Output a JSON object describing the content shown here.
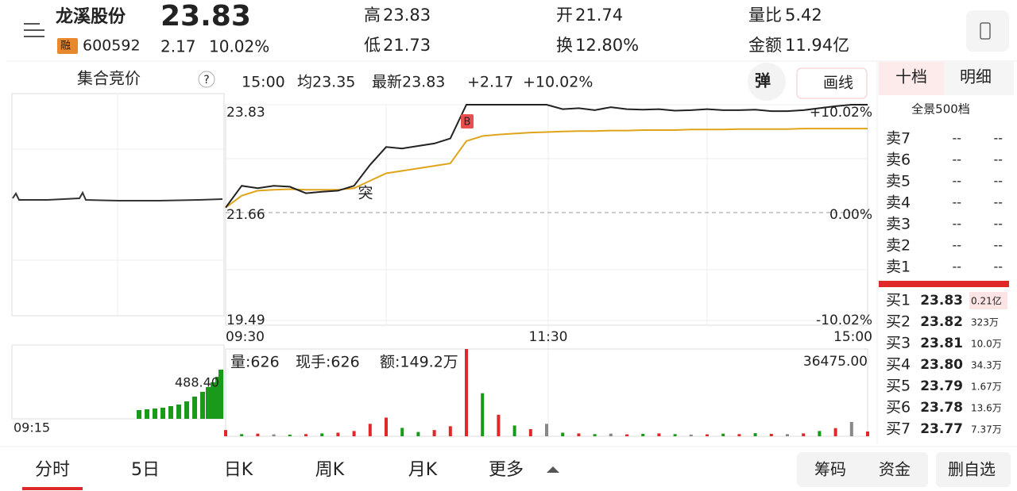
{
  "header": {
    "name": "龙溪股份",
    "price": "23.83",
    "badge": "融",
    "code": "600592",
    "change": "2.17",
    "change_pct": "10.02%",
    "stats": [
      {
        "label": "高",
        "value": "23.83"
      },
      {
        "label": "低",
        "value": "21.73"
      },
      {
        "label": "开",
        "value": "21.74"
      },
      {
        "label": "换",
        "value": "12.80%"
      },
      {
        "label": "量比",
        "value": "5.42"
      },
      {
        "label": "金额",
        "value": "11.94亿"
      }
    ]
  },
  "toolbar": {
    "auction": "集合竞价",
    "help": "?",
    "time": "15:00",
    "avg": "均23.35",
    "latest": "最新23.83",
    "change": "+2.17",
    "change_pct": "+10.02%",
    "popup": "弹",
    "draw": "画线"
  },
  "auction": {
    "volume_label": "488.40",
    "time": "09:15"
  },
  "chart": {
    "price_ylim": [
      19.49,
      23.83
    ],
    "price_yticks": [
      23.83,
      21.66,
      19.49
    ],
    "pct_ticks": [
      {
        "value": 23.83,
        "label": "+10.02%"
      },
      {
        "value": 21.66,
        "label": "0.00%"
      },
      {
        "value": 19.49,
        "label": "-10.02%"
      }
    ],
    "xticks": [
      "09:30",
      "11:30",
      "15:00"
    ],
    "price": [
      21.76,
      22.2,
      22.15,
      22.2,
      22.18,
      22.05,
      22.08,
      22.1,
      22.2,
      22.62,
      22.98,
      22.95,
      23.0,
      23.05,
      23.15,
      23.83,
      23.83,
      23.83,
      23.83,
      23.83,
      23.83,
      23.74,
      23.76,
      23.72,
      23.78,
      23.74,
      23.73,
      23.74,
      23.71,
      23.72,
      23.74,
      23.72,
      23.72,
      23.73,
      23.7,
      23.7,
      23.72,
      23.76,
      23.8,
      23.83,
      23.83
    ],
    "average": [
      21.76,
      22.0,
      22.1,
      22.12,
      22.13,
      22.12,
      22.12,
      22.12,
      22.15,
      22.3,
      22.45,
      22.5,
      22.55,
      22.6,
      22.65,
      23.1,
      23.2,
      23.23,
      23.25,
      23.27,
      23.28,
      23.29,
      23.3,
      23.3,
      23.31,
      23.31,
      23.32,
      23.32,
      23.32,
      23.33,
      23.33,
      23.33,
      23.34,
      23.34,
      23.34,
      23.34,
      23.35,
      23.35,
      23.35,
      23.35,
      23.35
    ],
    "markers": [
      "突",
      "B"
    ],
    "volume_label": "量:626",
    "hand_label": "现手:626",
    "amount_label": "额:149.2万",
    "volume_ylim": [
      0,
      36475
    ],
    "volume_yticks": [
      {
        "value": 36475,
        "label": "36475.00"
      }
    ],
    "volume": [
      2600,
      900,
      1100,
      800,
      700,
      900,
      1200,
      1500,
      2200,
      5200,
      7800,
      3500,
      1800,
      2600,
      4200,
      36475,
      18000,
      9000,
      4500,
      3000,
      5200,
      1500,
      1200,
      900,
      1100,
      800,
      1000,
      1200,
      900,
      700,
      800,
      1100,
      900,
      1300,
      1000,
      900,
      1200,
      2200,
      3400,
      6000,
      2000
    ],
    "volume_colors": [
      "#e02828",
      "#1a9a1a",
      "#e02828",
      "#888888",
      "#1a9a1a",
      "#e02828",
      "#1a9a1a",
      "#e02828",
      "#e02828",
      "#e02828",
      "#e02828",
      "#1a9a1a",
      "#1a9a1a",
      "#e02828",
      "#e02828",
      "#e02828",
      "#1a9a1a",
      "#e02828",
      "#1a9a1a",
      "#e02828",
      "#888888",
      "#1a9a1a",
      "#e02828",
      "#1a9a1a",
      "#888888",
      "#e02828",
      "#1a9a1a",
      "#e02828",
      "#1a9a1a",
      "#888888",
      "#e02828",
      "#1a9a1a",
      "#e02828",
      "#1a9a1a",
      "#e02828",
      "#888888",
      "#e02828",
      "#1a9a1a",
      "#e02828",
      "#888888",
      "#e02828"
    ]
  },
  "order_book": {
    "tabs": [
      "十档",
      "明细"
    ],
    "panorama": "全景500档",
    "sell": [
      {
        "name": "卖7",
        "price": "--",
        "volume": "--"
      },
      {
        "name": "卖6",
        "price": "--",
        "volume": "--"
      },
      {
        "name": "卖5",
        "price": "--",
        "volume": "--"
      },
      {
        "name": "卖4",
        "price": "--",
        "volume": "--"
      },
      {
        "name": "卖3",
        "price": "--",
        "volume": "--"
      },
      {
        "name": "卖2",
        "price": "--",
        "volume": "--"
      },
      {
        "name": "卖1",
        "price": "--",
        "volume": "--"
      }
    ],
    "buy": [
      {
        "name": "买1",
        "price": "23.83",
        "volume": "0.21亿"
      },
      {
        "name": "买2",
        "price": "23.82",
        "volume": "323万"
      },
      {
        "name": "买3",
        "price": "23.81",
        "volume": "10.0万"
      },
      {
        "name": "买4",
        "price": "23.80",
        "volume": "34.3万"
      },
      {
        "name": "买5",
        "price": "23.79",
        "volume": "1.67万"
      },
      {
        "name": "买6",
        "price": "23.78",
        "volume": "13.6万"
      },
      {
        "name": "买7",
        "price": "23.77",
        "volume": "7.37万"
      }
    ]
  },
  "tabs": [
    "分时",
    "5日",
    "日K",
    "周K",
    "月K",
    "更多"
  ],
  "actions": [
    "筹码",
    "资金",
    "删自选"
  ]
}
